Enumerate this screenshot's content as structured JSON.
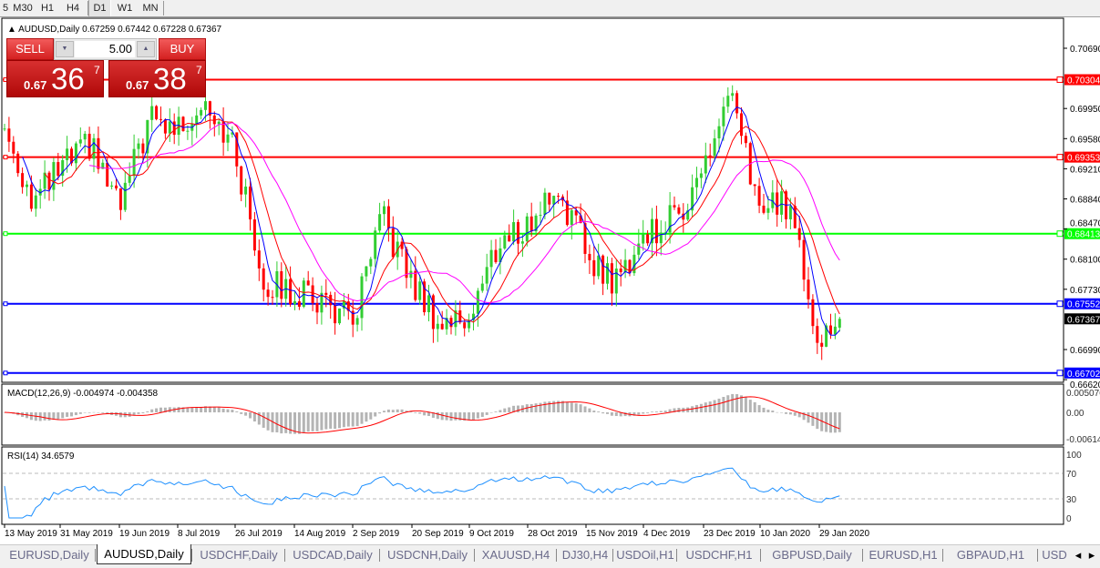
{
  "toolbar": {
    "timeframes": [
      "5",
      "M30",
      "H1",
      "H4",
      "D1",
      "W1",
      "MN"
    ],
    "active": "D1"
  },
  "chart": {
    "symbol_label": "AUDUSD,Daily",
    "ohlc": "0.67259 0.67442 0.67228 0.67367",
    "price_ticks": [
      "0.70690",
      "0.69950",
      "0.69580",
      "0.69210",
      "0.68840",
      "0.68470",
      "0.68100",
      "0.67730",
      "0.66990",
      "0.66620"
    ],
    "current_price": "0.67367",
    "levels": [
      {
        "price": "0.70304",
        "color": "#ff0000"
      },
      {
        "price": "0.69353",
        "color": "#ff0000"
      },
      {
        "price": "0.68413",
        "color": "#00ff00"
      },
      {
        "price": "0.67552",
        "color": "#0000ff"
      },
      {
        "price": "0.66702",
        "color": "#0000ff"
      }
    ],
    "date_ticks": [
      "13 May 2019",
      "31 May 2019",
      "19 Jun 2019",
      "8 Jul 2019",
      "26 Jul 2019",
      "14 Aug 2019",
      "2 Sep 2019",
      "20 Sep 2019",
      "9 Oct 2019",
      "28 Oct 2019",
      "15 Nov 2019",
      "4 Dec 2019",
      "23 Dec 2019",
      "10 Jan 2020",
      "29 Jan 2020"
    ],
    "colors": {
      "bull": "#32cd32",
      "bear": "#ff0000",
      "ma_fast": "#0000ff",
      "ma_mid": "#ff0000",
      "ma_slow": "#ff00ff"
    }
  },
  "one_click": {
    "sell_label": "SELL",
    "buy_label": "BUY",
    "lot": "5.00",
    "sell_prefix": "0.67",
    "sell_big": "36",
    "sell_sup": "7",
    "buy_prefix": "0.67",
    "buy_big": "38",
    "buy_sup": "7"
  },
  "macd": {
    "label": "MACD(12,26,9) -0.004974 -0.004358",
    "ticks": [
      "0.005076",
      "0.00",
      "-0.00614"
    ]
  },
  "rsi": {
    "label": "RSI(14) 34.6579",
    "ticks": [
      "100",
      "70",
      "30",
      "0"
    ]
  },
  "chart_data": {
    "type": "candlestick",
    "approx_close_waypoints": [
      [
        "13 May 2019",
        0.697
      ],
      [
        "22 May 2019",
        0.688
      ],
      [
        "31 May 2019",
        0.692
      ],
      [
        "10 Jun 2019",
        0.695
      ],
      [
        "19 Jun 2019",
        0.687
      ],
      [
        "28 Jun 2019",
        0.698
      ],
      [
        "8 Jul 2019",
        0.697
      ],
      [
        "17 Jul 2019",
        0.701
      ],
      [
        "26 Jul 2019",
        0.694
      ],
      [
        "5 Aug 2019",
        0.678
      ],
      [
        "14 Aug 2019",
        0.677
      ],
      [
        "23 Aug 2019",
        0.676
      ],
      [
        "2 Sep 2019",
        0.673
      ],
      [
        "11 Sep 2019",
        0.686
      ],
      [
        "20 Sep 2019",
        0.678
      ],
      [
        "30 Sep 2019",
        0.673
      ],
      [
        "9 Oct 2019",
        0.674
      ],
      [
        "18 Oct 2019",
        0.683
      ],
      [
        "28 Oct 2019",
        0.685
      ],
      [
        "6 Nov 2019",
        0.69
      ],
      [
        "15 Nov 2019",
        0.682
      ],
      [
        "25 Nov 2019",
        0.678
      ],
      [
        "4 Dec 2019",
        0.684
      ],
      [
        "13 Dec 2019",
        0.686
      ],
      [
        "23 Dec 2019",
        0.692
      ],
      [
        "31 Dec 2019",
        0.701
      ],
      [
        "10 Jan 2020",
        0.687
      ],
      [
        "20 Jan 2020",
        0.688
      ],
      [
        "29 Jan 2020",
        0.671
      ],
      [
        "4 Feb 2020",
        0.67367
      ]
    ],
    "ylim": [
      0.6662,
      0.7069
    ]
  },
  "tabs": [
    "EURUSD,Daily",
    "AUDUSD,Daily",
    "USDCHF,Daily",
    "USDCAD,Daily",
    "USDCNH,Daily",
    "XAUUSD,H4",
    "DJ30,H4",
    "USDOil,H1",
    "USDCHF,H1",
    "GBPUSD,Daily",
    "EURUSD,H1",
    "GBPAUD,H1",
    "USD"
  ],
  "active_tab": "AUDUSD,Daily"
}
